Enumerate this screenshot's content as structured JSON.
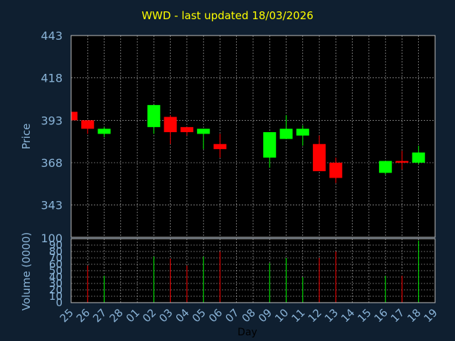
{
  "chart_data": {
    "type": "candlestick",
    "title": "WWD - last updated 18/03/2026",
    "xlabel": "Day",
    "ylabel": "Price",
    "volume_label": "Volume (0000)",
    "categories": [
      "25",
      "26",
      "27",
      "28",
      "01",
      "02",
      "03",
      "04",
      "05",
      "06",
      "07",
      "08",
      "09",
      "10",
      "11",
      "12",
      "13",
      "14",
      "15",
      "16",
      "17",
      "18",
      "19"
    ],
    "price_ticks": [
      343,
      368,
      393,
      418,
      443
    ],
    "price_ylim": [
      324,
      443
    ],
    "volume_ticks": [
      0,
      10,
      20,
      30,
      40,
      50,
      60,
      70,
      80,
      90,
      100
    ],
    "volume_ylim": [
      0,
      100
    ],
    "grid": true,
    "colors": {
      "up": "#00ff00",
      "down": "#ff0000",
      "background": "#0f1f30",
      "plot": "#000000",
      "grid": "#c0c0c0",
      "axis_text": "#8ab4d8",
      "title": "#ffff00",
      "frame": "#c0c0c0"
    },
    "candles": [
      {
        "day": "25",
        "open": 398,
        "close": 393,
        "high": 398,
        "low": 393,
        "volume": null
      },
      {
        "day": "26",
        "open": 393,
        "close": 388,
        "high": 393,
        "low": 385,
        "volume": 58
      },
      {
        "day": "27",
        "open": 385,
        "close": 388,
        "high": 389,
        "low": 383,
        "volume": 42
      },
      {
        "day": "02",
        "open": 389,
        "close": 402,
        "high": 402,
        "low": 385,
        "volume": 72
      },
      {
        "day": "03",
        "open": 395,
        "close": 386,
        "high": 396,
        "low": 379,
        "volume": 69
      },
      {
        "day": "04",
        "open": 389,
        "close": 386,
        "high": 389,
        "low": 384,
        "volume": 58
      },
      {
        "day": "05",
        "open": 385,
        "close": 388,
        "high": 388,
        "low": 376,
        "volume": 72
      },
      {
        "day": "06",
        "open": 379,
        "close": 376,
        "high": 385,
        "low": 371,
        "volume": 80
      },
      {
        "day": "09",
        "open": 371,
        "close": 386,
        "high": 386,
        "low": 365,
        "volume": 62
      },
      {
        "day": "10",
        "open": 382,
        "close": 388,
        "high": 396,
        "low": 382,
        "volume": 70
      },
      {
        "day": "11",
        "open": 384,
        "close": 388,
        "high": 390,
        "low": 378,
        "volume": 40
      },
      {
        "day": "12",
        "open": 379,
        "close": 363,
        "high": 384,
        "low": 363,
        "volume": 70
      },
      {
        "day": "13",
        "open": 368,
        "close": 359,
        "high": 371,
        "low": 356,
        "volume": 80
      },
      {
        "day": "16",
        "open": 362,
        "close": 369,
        "high": 369,
        "low": 361,
        "volume": 42
      },
      {
        "day": "17",
        "open": 369,
        "close": 368,
        "high": 375,
        "low": 364,
        "volume": 42
      },
      {
        "day": "18",
        "open": 368,
        "close": 374,
        "high": 378,
        "low": 367,
        "volume": 97
      }
    ]
  }
}
